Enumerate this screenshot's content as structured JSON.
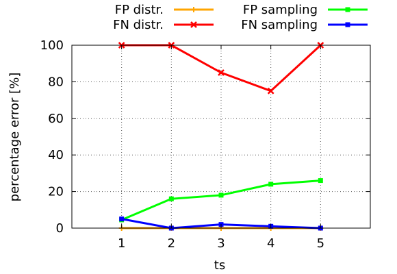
{
  "chart_data": {
    "type": "line",
    "xlabel": "ts",
    "ylabel": "percentage error [%]",
    "x": [
      1,
      2,
      3,
      4,
      5
    ],
    "xlim": [
      0.0,
      6.0
    ],
    "ylim": [
      0,
      100
    ],
    "xticks": [
      "1",
      "2",
      "3",
      "4",
      "5"
    ],
    "yticks": [
      "0",
      "20",
      "40",
      "60",
      "80",
      "100"
    ],
    "grid": true,
    "legend_position": "top",
    "series": [
      {
        "name": "FP distr.",
        "color": "#ffa500",
        "marker": "plus",
        "values": [
          0,
          0,
          0,
          0,
          0
        ]
      },
      {
        "name": "FN distr.",
        "color": "#ff0000",
        "marker": "cross",
        "values": [
          100,
          100,
          85,
          75,
          100
        ]
      },
      {
        "name": "FP sampling",
        "color": "#00ff00",
        "marker": "square",
        "values": [
          4.5,
          16,
          18,
          24,
          26
        ]
      },
      {
        "name": "FN sampling",
        "color": "#0000ff",
        "marker": "square",
        "values": [
          5,
          0,
          2,
          1,
          0
        ]
      }
    ]
  }
}
